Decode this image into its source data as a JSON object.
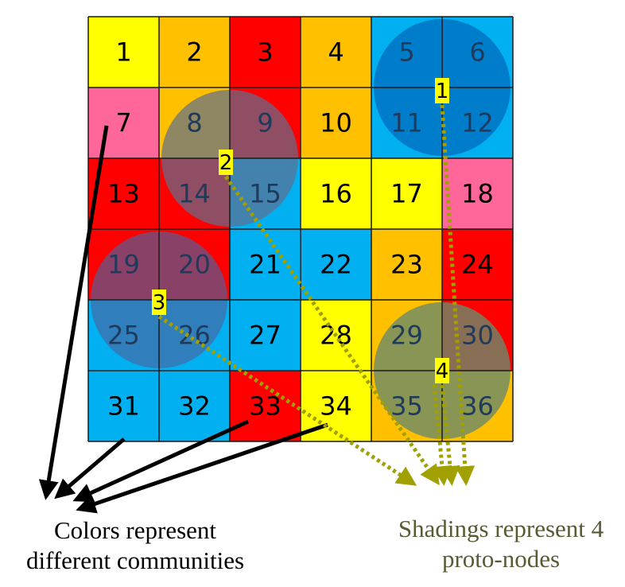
{
  "colors": {
    "yellow": "#ffff00",
    "orange": "#ffc000",
    "red": "#ff0000",
    "pink": "#ff6699",
    "blue": "#00b0f0",
    "arrow_black": "#000000",
    "arrow_olive": "#a0a000",
    "label_bg": "#ffff00",
    "caption_olive": "#5a5a32"
  },
  "grid": {
    "rows": 6,
    "cols": 6,
    "cells": [
      {
        "n": "1",
        "color": "yellow"
      },
      {
        "n": "2",
        "color": "orange"
      },
      {
        "n": "3",
        "color": "red"
      },
      {
        "n": "4",
        "color": "orange"
      },
      {
        "n": "5",
        "color": "blue"
      },
      {
        "n": "6",
        "color": "blue"
      },
      {
        "n": "7",
        "color": "pink"
      },
      {
        "n": "8",
        "color": "orange"
      },
      {
        "n": "9",
        "color": "red"
      },
      {
        "n": "10",
        "color": "orange"
      },
      {
        "n": "11",
        "color": "blue"
      },
      {
        "n": "12",
        "color": "blue"
      },
      {
        "n": "13",
        "color": "red"
      },
      {
        "n": "14",
        "color": "red"
      },
      {
        "n": "15",
        "color": "blue"
      },
      {
        "n": "16",
        "color": "yellow"
      },
      {
        "n": "17",
        "color": "yellow"
      },
      {
        "n": "18",
        "color": "pink"
      },
      {
        "n": "19",
        "color": "red"
      },
      {
        "n": "20",
        "color": "red"
      },
      {
        "n": "21",
        "color": "blue"
      },
      {
        "n": "22",
        "color": "blue"
      },
      {
        "n": "23",
        "color": "orange"
      },
      {
        "n": "24",
        "color": "red"
      },
      {
        "n": "25",
        "color": "blue"
      },
      {
        "n": "26",
        "color": "blue"
      },
      {
        "n": "27",
        "color": "blue"
      },
      {
        "n": "28",
        "color": "yellow"
      },
      {
        "n": "29",
        "color": "orange"
      },
      {
        "n": "30",
        "color": "red"
      },
      {
        "n": "31",
        "color": "blue"
      },
      {
        "n": "32",
        "color": "blue"
      },
      {
        "n": "33",
        "color": "red"
      },
      {
        "n": "34",
        "color": "yellow"
      },
      {
        "n": "35",
        "color": "orange"
      },
      {
        "n": "36",
        "color": "orange"
      }
    ]
  },
  "proto_nodes": [
    {
      "label": "1",
      "cells": [
        "5",
        "6",
        "11",
        "12"
      ],
      "shade": "#0070c0",
      "opacity": 0.8
    },
    {
      "label": "2",
      "cells": [
        "8",
        "9",
        "14",
        "15"
      ],
      "shade": "#5f6f8f",
      "opacity": 0.7
    },
    {
      "label": "3",
      "cells": [
        "19",
        "20",
        "25",
        "26"
      ],
      "shade": "#4a64a0",
      "opacity": 0.65
    },
    {
      "label": "4",
      "cells": [
        "29",
        "30",
        "35",
        "36"
      ],
      "shade": "#6a8a6a",
      "opacity": 0.8
    }
  ],
  "captions": {
    "colors": [
      "Colors represent",
      "different communities"
    ],
    "shadings": [
      "Shadings represent 4",
      "proto-nodes"
    ]
  }
}
